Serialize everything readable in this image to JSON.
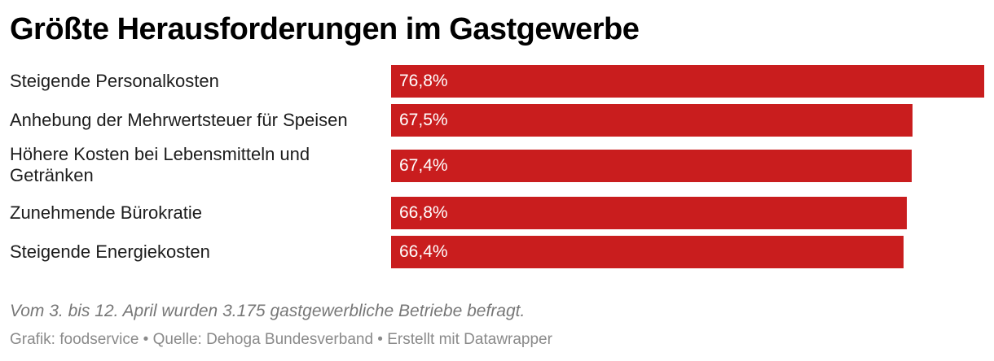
{
  "title": "Größte Herausforderungen im Gastgewerbe",
  "notes": "Vom 3. bis 12. April wurden 3.175 gastgewerbliche Betriebe befragt.",
  "footer": "Grafik: foodservice • Quelle: Dehoga Bundesverband • Erstellt mit Datawrapper",
  "colors": {
    "bar": "#c91d1e",
    "bar_label": "#ffffff",
    "title": "#000000",
    "notes": "#777777"
  },
  "chart_data": {
    "type": "bar",
    "orientation": "horizontal",
    "title": "Größte Herausforderungen im Gastgewerbe",
    "categories": [
      "Steigende Personalkosten",
      "Anhebung der Mehrwertsteuer für Speisen",
      "Höhere Kosten bei Lebensmitteln und Getränken",
      "Zunehmende Bürokratie",
      "Steigende Energiekosten"
    ],
    "values": [
      76.8,
      67.5,
      67.4,
      66.8,
      66.4
    ],
    "value_labels": [
      "76,8%",
      "67,5%",
      "67,4%",
      "66,8%",
      "66,4%"
    ],
    "unit": "%",
    "xlim": [
      0,
      76.8
    ],
    "grid": false,
    "legend": "none"
  }
}
